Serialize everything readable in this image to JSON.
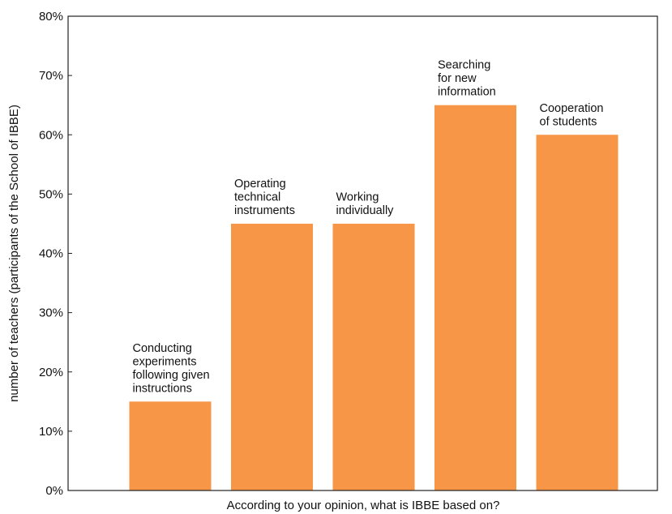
{
  "chart_data": {
    "type": "bar",
    "categories": [
      [
        "Conducting",
        "experiments",
        "following given",
        "instructions"
      ],
      [
        "Operating",
        "technical",
        "instruments"
      ],
      [
        "Working",
        "individually"
      ],
      [
        "Searching",
        "for new",
        "information"
      ],
      [
        "Cooperation",
        "of students"
      ]
    ],
    "values": [
      15,
      45,
      45,
      65,
      60
    ],
    "xlabel": "According to your opinion, what is IBBE based on?",
    "ylabel": "number of teachers (participants of the School of IBBE)",
    "ylim": [
      0,
      80
    ],
    "yticks": [
      0,
      10,
      20,
      30,
      40,
      50,
      60,
      70,
      80
    ],
    "ytick_labels": [
      "0%",
      "10%",
      "20%",
      "30%",
      "40%",
      "50%",
      "60%",
      "70%",
      "80%"
    ],
    "bar_color": "#f79646",
    "grid": false,
    "legend": "none"
  }
}
